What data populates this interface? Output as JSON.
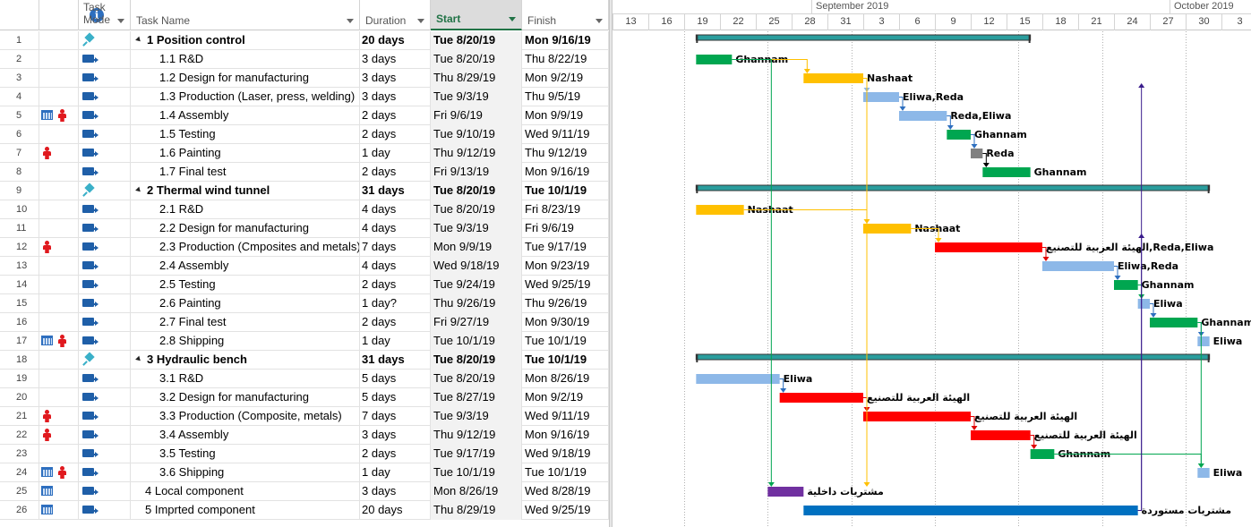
{
  "columns": {
    "mode": "Task\nMode",
    "mode_l1": "Task",
    "mode_l2": "Mode",
    "name": "Task Name",
    "duration": "Duration",
    "start": "Start",
    "finish": "Finish"
  },
  "timescale": {
    "months": [
      {
        "label": "September 2019",
        "day_index": 18
      },
      {
        "label": "October 2019",
        "day_index": 48
      }
    ],
    "day_labels": [
      "13",
      "16",
      "19",
      "22",
      "25",
      "28",
      "31",
      "3",
      "6",
      "9",
      "12",
      "15",
      "18",
      "21",
      "24",
      "27",
      "30",
      "3"
    ],
    "first_day_label_date": "2019-08-13"
  },
  "tasks": [
    {
      "id": "1",
      "mode": "manual",
      "indicators": [],
      "name": "1 Position control",
      "summary": true,
      "level": 0,
      "duration": "20 days",
      "start": "Tue 8/20/19",
      "finish": "Mon 9/16/19",
      "bar_start": "2019-08-20",
      "bar_end": "2019-09-16",
      "color": "#2a9d9d",
      "resource": ""
    },
    {
      "id": "2",
      "mode": "auto",
      "indicators": [],
      "name": "1.1 R&D",
      "level": 1,
      "duration": "3 days",
      "start": "Tue 8/20/19",
      "finish": "Thu 8/22/19",
      "bar_start": "2019-08-20",
      "bar_end": "2019-08-22",
      "color": "#00a650",
      "resource": "Ghannam"
    },
    {
      "id": "3",
      "mode": "auto",
      "indicators": [],
      "name": "1.2 Design for manufacturing",
      "level": 1,
      "duration": "3 days",
      "start": "Thu 8/29/19",
      "finish": "Mon 9/2/19",
      "bar_start": "2019-08-29",
      "bar_end": "2019-09-02",
      "color": "#ffc000",
      "resource": "Nashaat"
    },
    {
      "id": "4",
      "mode": "auto",
      "indicators": [],
      "name": "1.3 Production (Laser, press, welding)",
      "level": 1,
      "duration": "3 days",
      "start": "Tue 9/3/19",
      "finish": "Thu 9/5/19",
      "bar_start": "2019-09-03",
      "bar_end": "2019-09-05",
      "color": "#8db8e8",
      "resource": "Eliwa,Reda"
    },
    {
      "id": "5",
      "mode": "auto",
      "indicators": [
        "calendar",
        "person"
      ],
      "name": "1.4 Assembly",
      "level": 1,
      "duration": "2 days",
      "start": "Fri 9/6/19",
      "finish": "Mon 9/9/19",
      "bar_start": "2019-09-06",
      "bar_end": "2019-09-09",
      "color": "#8db8e8",
      "resource": "Reda,Eliwa"
    },
    {
      "id": "6",
      "mode": "auto",
      "indicators": [],
      "name": "1.5 Testing",
      "level": 1,
      "duration": "2 days",
      "start": "Tue 9/10/19",
      "finish": "Wed 9/11/19",
      "bar_start": "2019-09-10",
      "bar_end": "2019-09-11",
      "color": "#00a650",
      "resource": "Ghannam"
    },
    {
      "id": "7",
      "mode": "auto",
      "indicators": [
        "person"
      ],
      "name": "1.6 Painting",
      "level": 1,
      "duration": "1 day",
      "start": "Thu 9/12/19",
      "finish": "Thu 9/12/19",
      "bar_start": "2019-09-12",
      "bar_end": "2019-09-12",
      "color": "#808080",
      "resource": "Reda"
    },
    {
      "id": "8",
      "mode": "auto",
      "indicators": [],
      "name": "1.7 Final test",
      "level": 1,
      "duration": "2 days",
      "start": "Fri 9/13/19",
      "finish": "Mon 9/16/19",
      "bar_start": "2019-09-13",
      "bar_end": "2019-09-16",
      "color": "#00a650",
      "resource": "Ghannam"
    },
    {
      "id": "9",
      "mode": "manual",
      "indicators": [],
      "name": "2 Thermal wind tunnel",
      "summary": true,
      "level": 0,
      "duration": "31 days",
      "start": "Tue 8/20/19",
      "finish": "Tue 10/1/19",
      "bar_start": "2019-08-20",
      "bar_end": "2019-10-01",
      "color": "#2a9d9d",
      "resource": ""
    },
    {
      "id": "10",
      "mode": "auto",
      "indicators": [],
      "name": "2.1 R&D",
      "level": 1,
      "duration": "4 days",
      "start": "Tue 8/20/19",
      "finish": "Fri 8/23/19",
      "bar_start": "2019-08-20",
      "bar_end": "2019-08-23",
      "color": "#ffc000",
      "resource": "Nashaat"
    },
    {
      "id": "11",
      "mode": "auto",
      "indicators": [],
      "name": "2.2 Design for manufacturing",
      "level": 1,
      "duration": "4 days",
      "start": "Tue 9/3/19",
      "finish": "Fri 9/6/19",
      "bar_start": "2019-09-03",
      "bar_end": "2019-09-06",
      "color": "#ffc000",
      "resource": "Nashaat"
    },
    {
      "id": "12",
      "mode": "auto",
      "indicators": [
        "person"
      ],
      "name": "2.3 Production (Cmposites and metals)",
      "level": 1,
      "duration": "7 days",
      "start": "Mon 9/9/19",
      "finish": "Tue 9/17/19",
      "bar_start": "2019-09-09",
      "bar_end": "2019-09-17",
      "color": "#ff0000",
      "resource": "الهيئة العربية للتصنيع,Reda,Eliwa"
    },
    {
      "id": "13",
      "mode": "auto",
      "indicators": [],
      "name": "2.4 Assembly",
      "level": 1,
      "duration": "4 days",
      "start": "Wed 9/18/19",
      "finish": "Mon 9/23/19",
      "bar_start": "2019-09-18",
      "bar_end": "2019-09-23",
      "color": "#8db8e8",
      "resource": "Eliwa,Reda"
    },
    {
      "id": "14",
      "mode": "auto",
      "indicators": [],
      "name": "2.5 Testing",
      "level": 1,
      "duration": "2 days",
      "start": "Tue 9/24/19",
      "finish": "Wed 9/25/19",
      "bar_start": "2019-09-24",
      "bar_end": "2019-09-25",
      "color": "#00a650",
      "resource": "Ghannam"
    },
    {
      "id": "15",
      "mode": "auto",
      "indicators": [],
      "name": "2.6 Painting",
      "level": 1,
      "duration": "1 day?",
      "start": "Thu 9/26/19",
      "finish": "Thu 9/26/19",
      "bar_start": "2019-09-26",
      "bar_end": "2019-09-26",
      "color": "#8db8e8",
      "resource": "Eliwa"
    },
    {
      "id": "16",
      "mode": "auto",
      "indicators": [],
      "name": "2.7 Final test",
      "level": 1,
      "duration": "2 days",
      "start": "Fri 9/27/19",
      "finish": "Mon 9/30/19",
      "bar_start": "2019-09-27",
      "bar_end": "2019-09-30",
      "color": "#00a650",
      "resource": "Ghannam"
    },
    {
      "id": "17",
      "mode": "auto",
      "indicators": [
        "calendar",
        "person"
      ],
      "name": "2.8 Shipping",
      "level": 1,
      "duration": "1 day",
      "start": "Tue 10/1/19",
      "finish": "Tue 10/1/19",
      "bar_start": "2019-10-01",
      "bar_end": "2019-10-01",
      "color": "#8db8e8",
      "resource": "Eliwa"
    },
    {
      "id": "18",
      "mode": "manual",
      "indicators": [],
      "name": "3 Hydraulic bench",
      "summary": true,
      "level": 0,
      "duration": "31 days",
      "start": "Tue 8/20/19",
      "finish": "Tue 10/1/19",
      "bar_start": "2019-08-20",
      "bar_end": "2019-10-01",
      "color": "#2a9d9d",
      "resource": ""
    },
    {
      "id": "19",
      "mode": "auto",
      "indicators": [],
      "name": "3.1 R&D",
      "level": 1,
      "duration": "5 days",
      "start": "Tue 8/20/19",
      "finish": "Mon 8/26/19",
      "bar_start": "2019-08-20",
      "bar_end": "2019-08-26",
      "color": "#8db8e8",
      "resource": "Eliwa"
    },
    {
      "id": "20",
      "mode": "auto",
      "indicators": [],
      "name": "3.2 Design for manufacturing",
      "level": 1,
      "duration": "5 days",
      "start": "Tue 8/27/19",
      "finish": "Mon 9/2/19",
      "bar_start": "2019-08-27",
      "bar_end": "2019-09-02",
      "color": "#ff0000",
      "resource": "الهيئة العربية للتصنيع"
    },
    {
      "id": "21",
      "mode": "auto",
      "indicators": [
        "person"
      ],
      "name": "3.3 Production (Composite, metals)",
      "level": 1,
      "duration": "7 days",
      "start": "Tue 9/3/19",
      "finish": "Wed 9/11/19",
      "bar_start": "2019-09-03",
      "bar_end": "2019-09-11",
      "color": "#ff0000",
      "resource": "الهيئة العربية للتصنيع"
    },
    {
      "id": "22",
      "mode": "auto",
      "indicators": [
        "person"
      ],
      "name": "3.4 Assembly",
      "level": 1,
      "duration": "3 days",
      "start": "Thu 9/12/19",
      "finish": "Mon 9/16/19",
      "bar_start": "2019-09-12",
      "bar_end": "2019-09-16",
      "color": "#ff0000",
      "resource": "الهيئة العربية للتصنيع"
    },
    {
      "id": "23",
      "mode": "auto",
      "indicators": [],
      "name": "3.5 Testing",
      "level": 1,
      "duration": "2 days",
      "start": "Tue 9/17/19",
      "finish": "Wed 9/18/19",
      "bar_start": "2019-09-17",
      "bar_end": "2019-09-18",
      "color": "#00a650",
      "resource": "Ghannam"
    },
    {
      "id": "24",
      "mode": "auto",
      "indicators": [
        "calendar",
        "person"
      ],
      "name": "3.6 Shipping",
      "level": 1,
      "duration": "1 day",
      "start": "Tue 10/1/19",
      "finish": "Tue 10/1/19",
      "bar_start": "2019-10-01",
      "bar_end": "2019-10-01",
      "color": "#8db8e8",
      "resource": "Eliwa"
    },
    {
      "id": "25",
      "mode": "auto",
      "indicators": [
        "calendar"
      ],
      "name": "4 Local component",
      "level": 0,
      "duration": "3 days",
      "start": "Mon 8/26/19",
      "finish": "Wed 8/28/19",
      "bar_start": "2019-08-26",
      "bar_end": "2019-08-28",
      "color": "#7030a0",
      "resource": "مشتريات داخلية"
    },
    {
      "id": "26",
      "mode": "auto",
      "indicators": [
        "calendar"
      ],
      "name": "5 Imprted component",
      "level": 0,
      "duration": "20 days",
      "start": "Thu 8/29/19",
      "finish": "Wed 9/25/19",
      "bar_start": "2019-08-29",
      "bar_end": "2019-09-25",
      "color": "#0070c0",
      "resource": "مشتريات مستوردة"
    }
  ],
  "links": [
    {
      "from": "2",
      "to": "3",
      "color": "#ffc000"
    },
    {
      "from": "3",
      "to": "4",
      "color": "#8db8e8"
    },
    {
      "from": "4",
      "to": "5",
      "color": "#2e6fbf"
    },
    {
      "from": "5",
      "to": "6",
      "color": "#2e6fbf"
    },
    {
      "from": "6",
      "to": "7",
      "color": "#2e6fbf"
    },
    {
      "from": "7",
      "to": "8",
      "color": "#000000"
    },
    {
      "from": "10",
      "to": "11",
      "color": "#ffc000"
    },
    {
      "from": "11",
      "to": "12",
      "color": "#ffc000"
    },
    {
      "from": "12",
      "to": "13",
      "color": "#e00000"
    },
    {
      "from": "13",
      "to": "14",
      "color": "#2e6fbf"
    },
    {
      "from": "14",
      "to": "15",
      "color": "#00a650"
    },
    {
      "from": "15",
      "to": "16",
      "color": "#2e6fbf"
    },
    {
      "from": "16",
      "to": "17",
      "color": "#2e6fbf"
    },
    {
      "from": "19",
      "to": "20",
      "color": "#2e6fbf"
    },
    {
      "from": "20",
      "to": "21",
      "color": "#e00000"
    },
    {
      "from": "21",
      "to": "22",
      "color": "#e00000"
    },
    {
      "from": "22",
      "to": "23",
      "color": "#e00000"
    },
    {
      "from": "23",
      "to": "24",
      "color": "#00a650"
    },
    {
      "from": "2",
      "to": "25",
      "color": "#00a650"
    },
    {
      "from": "3",
      "to": "25",
      "color": "#ffc000"
    },
    {
      "from": "26",
      "to": "3",
      "color": "#3a1c8c"
    },
    {
      "from": "26",
      "to": "11",
      "color": "#3a1c8c"
    },
    {
      "from": "16",
      "to": "24",
      "color": "#00a650"
    }
  ]
}
